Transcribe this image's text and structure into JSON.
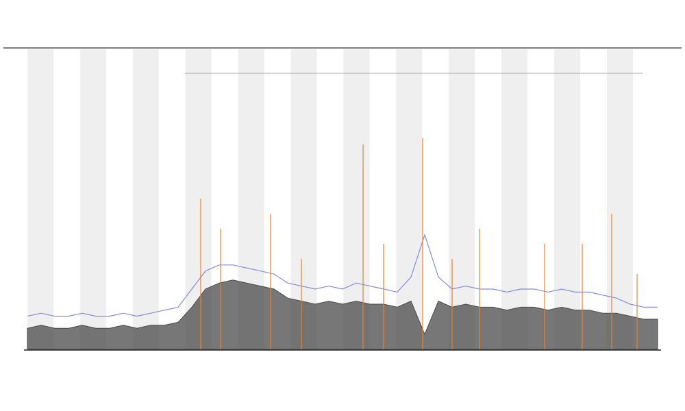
{
  "chart_data": {
    "type": "line",
    "x": [
      0,
      1,
      2,
      3,
      4,
      5,
      6,
      7,
      8,
      9,
      10,
      11,
      12,
      13,
      14,
      15,
      16,
      17,
      18,
      19,
      20,
      21,
      22,
      23,
      24,
      25,
      26,
      27,
      28,
      29,
      30,
      31,
      32,
      33,
      34,
      35,
      36,
      37,
      38,
      39,
      40,
      41,
      42,
      43,
      44,
      45,
      46
    ],
    "xlim": [
      0,
      46
    ],
    "ylim": [
      0,
      100
    ],
    "series": [
      {
        "color": "#4a4a4a",
        "values": [
          7,
          8,
          7,
          7,
          8,
          7,
          7,
          8,
          7,
          8,
          8,
          9,
          14,
          20,
          22,
          23,
          22,
          21,
          20,
          17,
          16,
          15,
          16,
          15,
          16,
          15,
          15,
          14,
          16,
          5,
          16,
          14,
          15,
          14,
          14,
          13,
          14,
          14,
          13,
          14,
          13,
          13,
          12,
          12,
          11,
          10,
          10
        ]
      },
      {
        "color": "#6b6bdc",
        "values": [
          11,
          12,
          11,
          11,
          12,
          11,
          11,
          12,
          11,
          12,
          13,
          14,
          20,
          26,
          28,
          28,
          27,
          26,
          25,
          22,
          21,
          20,
          21,
          20,
          22,
          21,
          20,
          19,
          24,
          38,
          24,
          20,
          21,
          20,
          20,
          19,
          20,
          20,
          19,
          20,
          19,
          19,
          18,
          17,
          15,
          14,
          14
        ]
      }
    ],
    "spikes": {
      "color": "#e8842c",
      "x": [
        12.65,
        14.1,
        17.75,
        20,
        24.5,
        26,
        28.85,
        31,
        33,
        37.75,
        40.5,
        42.65,
        44.5
      ],
      "values": [
        50,
        40,
        45,
        30,
        68,
        35,
        70,
        30,
        40,
        35,
        35,
        45,
        25
      ]
    }
  }
}
